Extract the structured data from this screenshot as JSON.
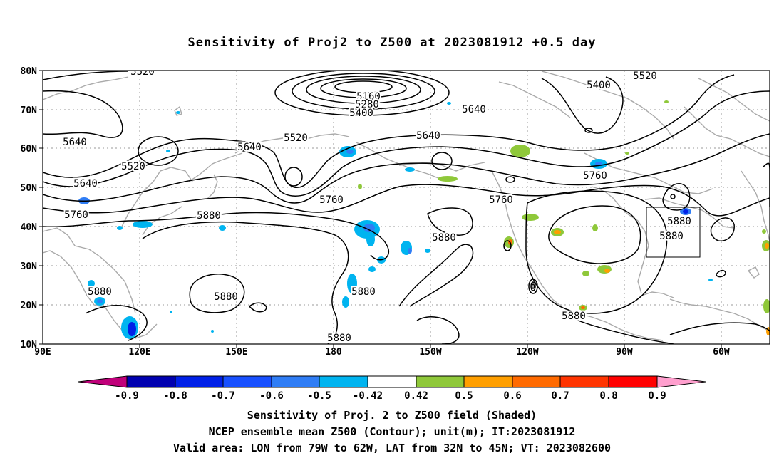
{
  "title": "Sensitivity of Proj2 to Z500 at 2023081912 +0.5 day",
  "map": {
    "lon_labels": [
      "90E",
      "120E",
      "150E",
      "180",
      "150W",
      "120W",
      "90W",
      "60W"
    ],
    "lat_labels": [
      "80N",
      "70N",
      "60N",
      "50N",
      "40N",
      "30N",
      "20N",
      "10N"
    ],
    "contour_labels": [
      "5520",
      "5160",
      "5280",
      "5400",
      "5520",
      "5400",
      "5640",
      "5520",
      "5640",
      "5520",
      "5640",
      "5640",
      "5640",
      "5760",
      "5760",
      "5760",
      "5760",
      "5880",
      "5880",
      "5880",
      "5880",
      "5880",
      "5880",
      "5880"
    ]
  },
  "colorbar": {
    "labels": [
      "-0.9",
      "-0.8",
      "-0.7",
      "-0.6",
      "-0.5",
      "-0.42",
      "0.42",
      "0.5",
      "0.6",
      "0.7",
      "0.8",
      "0.9"
    ],
    "colors": [
      "#c0007a",
      "#0000b0",
      "#0020e8",
      "#1850ff",
      "#2f7df5",
      "#00b4f0",
      "#ffffff",
      "#8fc83a",
      "#ff9f00",
      "#ff6a00",
      "#ff3400",
      "#ff0000",
      "#ff9fce"
    ]
  },
  "captions": {
    "line1": "Sensitivity of Proj. 2 to Z500 field (Shaded)",
    "line2": "NCEP ensemble mean Z500 (Contour); unit(m); IT:2023081912",
    "line3": "Valid area: LON from 79W to 62W, LAT from 32N to 45N; VT: 2023082600"
  }
}
